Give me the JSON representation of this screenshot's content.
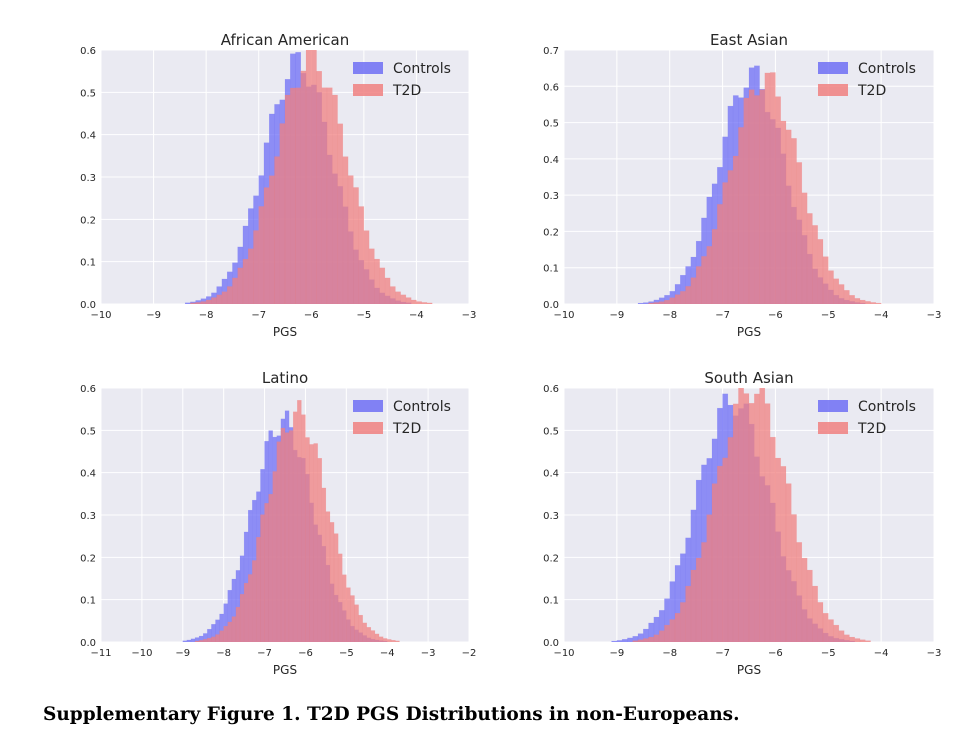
{
  "figure": {
    "caption": "Supplementary Figure 1. T2D PGS Distributions in non-Europeans."
  },
  "colors": {
    "background": "#EAEAF2",
    "grid": "#FFFFFF",
    "controls": "#6E6EF5",
    "t2d": "#F08080",
    "overlap": "#A0427A"
  },
  "chart_data": [
    {
      "type": "histogram",
      "title": "African American",
      "xlabel": "PGS",
      "ylabel": "",
      "xlim": [
        -10,
        -3
      ],
      "ylim": [
        0,
        0.6
      ],
      "xticks": [
        -10,
        -9,
        -8,
        -7,
        -6,
        -5,
        -4,
        -3
      ],
      "xtick_labels": [
        "−10",
        "−9",
        "−8",
        "−7",
        "−6",
        "−5",
        "−4",
        "−3"
      ],
      "yticks": [
        0,
        0.1,
        0.2,
        0.3,
        0.4,
        0.5,
        0.6
      ],
      "ytick_labels": [
        "0.0",
        "0.1",
        "0.2",
        "0.3",
        "0.4",
        "0.5",
        "0.6"
      ],
      "legend": [
        "Controls",
        "T2D"
      ],
      "legend_position": "top-right",
      "series": [
        {
          "name": "Controls",
          "mean": -6.25,
          "sd": 0.65,
          "peak": 0.57
        },
        {
          "name": "T2D",
          "mean": -6.0,
          "sd": 0.68,
          "peak": 0.58
        }
      ]
    },
    {
      "type": "histogram",
      "title": "East Asian",
      "xlabel": "PGS",
      "ylabel": "",
      "xlim": [
        -10,
        -3
      ],
      "ylim": [
        0,
        0.7
      ],
      "xticks": [
        -10,
        -9,
        -8,
        -7,
        -6,
        -5,
        -4,
        -3
      ],
      "xtick_labels": [
        "−10",
        "−9",
        "−8",
        "−7",
        "−6",
        "−5",
        "−4",
        "−3"
      ],
      "yticks": [
        0,
        0.1,
        0.2,
        0.3,
        0.4,
        0.5,
        0.6,
        0.7
      ],
      "ytick_labels": [
        "0.0",
        "0.1",
        "0.2",
        "0.3",
        "0.4",
        "0.5",
        "0.6",
        "0.7"
      ],
      "legend": [
        "Controls",
        "T2D"
      ],
      "legend_position": "top-right",
      "series": [
        {
          "name": "Controls",
          "mean": -6.45,
          "sd": 0.63,
          "peak": 0.63
        },
        {
          "name": "T2D",
          "mean": -6.2,
          "sd": 0.65,
          "peak": 0.62
        }
      ]
    },
    {
      "type": "histogram",
      "title": "Latino",
      "xlabel": "PGS",
      "ylabel": "",
      "xlim": [
        -11,
        -2
      ],
      "ylim": [
        0,
        0.6
      ],
      "xticks": [
        -11,
        -10,
        -9,
        -8,
        -7,
        -6,
        -5,
        -4,
        -3,
        -2
      ],
      "xtick_labels": [
        "−11",
        "−10",
        "−9",
        "−8",
        "−7",
        "−6",
        "−5",
        "−4",
        "−3",
        "−2"
      ],
      "yticks": [
        0,
        0.1,
        0.2,
        0.3,
        0.4,
        0.5,
        0.6
      ],
      "ytick_labels": [
        "0.0",
        "0.1",
        "0.2",
        "0.3",
        "0.4",
        "0.5",
        "0.6"
      ],
      "legend": [
        "Controls",
        "T2D"
      ],
      "legend_position": "top-right",
      "series": [
        {
          "name": "Controls",
          "mean": -6.55,
          "sd": 0.75,
          "peak": 0.52
        },
        {
          "name": "T2D",
          "mean": -6.2,
          "sd": 0.75,
          "peak": 0.54
        }
      ]
    },
    {
      "type": "histogram",
      "title": "South Asian",
      "xlabel": "PGS",
      "ylabel": "",
      "xlim": [
        -10,
        -3
      ],
      "ylim": [
        0,
        0.6
      ],
      "xticks": [
        -10,
        -9,
        -8,
        -7,
        -6,
        -5,
        -4,
        -3
      ],
      "xtick_labels": [
        "−10",
        "−9",
        "−8",
        "−7",
        "−6",
        "−5",
        "−4",
        "−3"
      ],
      "yticks": [
        0,
        0.1,
        0.2,
        0.3,
        0.4,
        0.5,
        0.6
      ],
      "ytick_labels": [
        "0.0",
        "0.1",
        "0.2",
        "0.3",
        "0.4",
        "0.5",
        "0.6"
      ],
      "legend": [
        "Controls",
        "T2D"
      ],
      "legend_position": "top-right",
      "series": [
        {
          "name": "Controls",
          "mean": -6.8,
          "sd": 0.68,
          "peak": 0.57
        },
        {
          "name": "T2D",
          "mean": -6.45,
          "sd": 0.68,
          "peak": 0.6
        }
      ]
    }
  ]
}
